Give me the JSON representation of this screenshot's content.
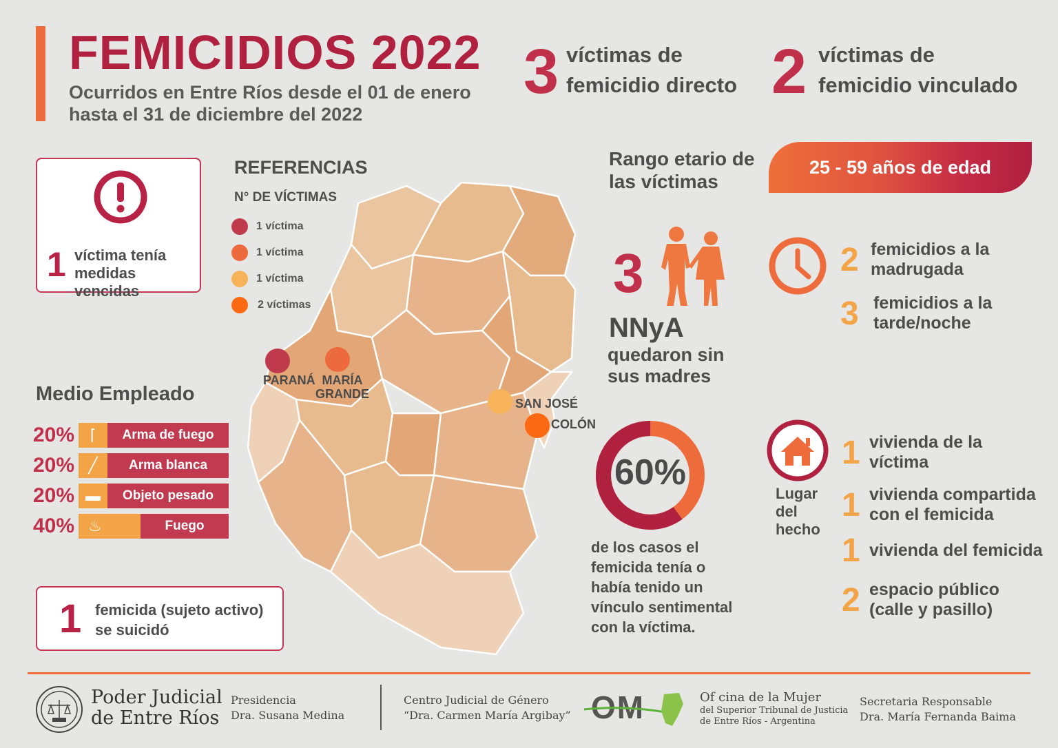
{
  "header": {
    "title": "FEMICIDIOS 2022",
    "subtitle_line1": "Ocurridos en Entre Ríos desde el 01 de enero",
    "subtitle_line2": "hasta el 31 de diciembre del 2022"
  },
  "stats": {
    "direct": {
      "number": "3",
      "line1": "víctimas de",
      "line2": "femicidio directo"
    },
    "linked": {
      "number": "2",
      "line1": "víctimas de",
      "line2": "femicidio vinculado"
    }
  },
  "expired": {
    "number": "1",
    "line1": "víctima tenía",
    "line2": "medidas vencidas"
  },
  "references": {
    "title": "REFERENCIAS",
    "subtitle": "N° DE VÍCTIMAS",
    "items": [
      {
        "label": "1 víctima",
        "color": "#bf3a4d"
      },
      {
        "label": "1 víctima",
        "color": "#ec6a3d"
      },
      {
        "label": "1 víctima",
        "color": "#f6b35a"
      },
      {
        "label": "2 víctimas",
        "color": "#fb6a12"
      }
    ]
  },
  "map": {
    "cities": [
      {
        "name": "PARANÁ",
        "color": "#bf3a4d"
      },
      {
        "name_line1": "MARÍA",
        "name_line2": "GRANDE",
        "color": "#ec6a3d"
      },
      {
        "name": "SAN JOSÉ",
        "color": "#f6b35a"
      },
      {
        "name": "COLÓN",
        "color": "#fb6a12"
      }
    ]
  },
  "medio": {
    "title": "Medio Empleado",
    "items": [
      {
        "pct": "20%",
        "label": "Arma de fuego",
        "icon": "gun-icon",
        "value": 20
      },
      {
        "pct": "20%",
        "label": "Arma blanca",
        "icon": "knife-icon",
        "value": 20
      },
      {
        "pct": "20%",
        "label": "Objeto pesado",
        "icon": "bone-icon",
        "value": 20
      },
      {
        "pct": "40%",
        "label": "Fuego",
        "icon": "fire-icon",
        "value": 40
      }
    ]
  },
  "suicide": {
    "number": "1",
    "line1": "femicida (sujeto activo)",
    "line2": "se suicidó"
  },
  "age": {
    "label_line1": "Rango etario de",
    "label_line2": "las víctimas",
    "range": "25 - 59 años de edad"
  },
  "children": {
    "number": "3",
    "acronym": "NNyA",
    "line1": "quedaron sin",
    "line2": "sus madres"
  },
  "time": {
    "items": [
      {
        "number": "2",
        "line1": "femicidios a la",
        "line2": "madrugada"
      },
      {
        "number": "3",
        "line1": "femicidios a la",
        "line2": "tarde/noche"
      }
    ]
  },
  "relationship": {
    "percent": "60%",
    "value": 60,
    "line1": "de los casos el",
    "line2": "femicida tenía o",
    "line3": "había tenido un",
    "line4": "vínculo sentimental",
    "line5": "con la víctima."
  },
  "place": {
    "label_line1": "Lugar",
    "label_line2": "del",
    "label_line3": "hecho",
    "items": [
      {
        "number": "1",
        "line1": "vivienda de la",
        "line2": "víctima"
      },
      {
        "number": "1",
        "line1": "vivienda compartida",
        "line2": "con el femicida"
      },
      {
        "number": "1",
        "line1": "vivienda del femicida",
        "line2": ""
      },
      {
        "number": "2",
        "line1": "espacio público",
        "line2": "(calle y pasillo)"
      }
    ]
  },
  "footer": {
    "org_line1": "Poder Judicial",
    "org_line2": "de Entre Ríos",
    "pres_line1": "Presidencia",
    "pres_line2": "Dra. Susana Medina",
    "center_line1": "Centro Judicial de Género",
    "center_line2": "“Dra. Carmen María Argibay”",
    "om": "OM",
    "office_line1": "Of cina de la Mujer",
    "office_line2": "del Superior Tribunal de Justicia",
    "office_line3": "de Entre Ríos - Argentina",
    "sec_line1": "Secretaria Responsable",
    "sec_line2": "Dra. María Fernanda Baima"
  }
}
